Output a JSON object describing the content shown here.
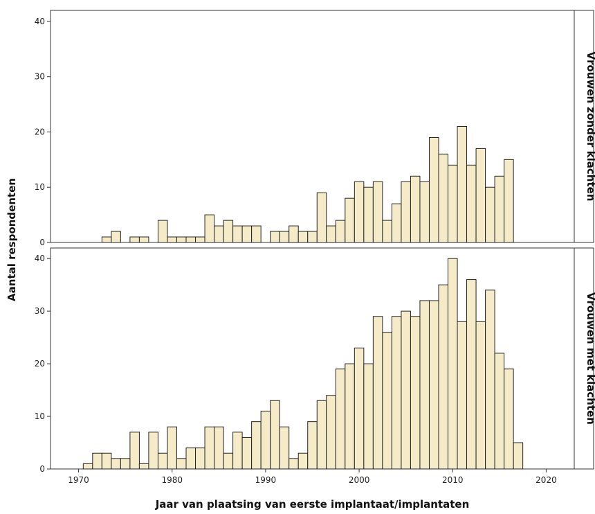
{
  "chart_data": {
    "type": "bar",
    "xlabel": "Jaar van plaatsing van eerste implantaat/implantaten",
    "ylabel": "Aantal respondenten",
    "xlim": [
      1967,
      2023
    ],
    "xticks": [
      1970,
      1980,
      1990,
      2000,
      2010,
      2020
    ],
    "bar_color": "#f5ebc8",
    "bar_edge_color": "#222222",
    "panels": [
      {
        "label": "Vrouwen zonder klachten",
        "ylim": [
          0,
          42
        ],
        "yticks": [
          0,
          10,
          20,
          30,
          40
        ],
        "years": [
          1972,
          1973,
          1974,
          1975,
          1976,
          1977,
          1978,
          1979,
          1980,
          1981,
          1982,
          1983,
          1984,
          1985,
          1986,
          1987,
          1988,
          1989,
          1990,
          1991,
          1992,
          1993,
          1994,
          1995,
          1996,
          1997,
          1998,
          1999,
          2000,
          2001,
          2002,
          2003,
          2004,
          2005,
          2006,
          2007,
          2008,
          2009,
          2010,
          2011,
          2012,
          2013,
          2014,
          2015,
          2016
        ],
        "values": [
          0,
          1,
          2,
          0,
          1,
          1,
          0,
          4,
          1,
          1,
          1,
          1,
          5,
          3,
          4,
          3,
          3,
          3,
          0,
          2,
          2,
          3,
          2,
          2,
          9,
          3,
          4,
          8,
          11,
          10,
          11,
          4,
          7,
          11,
          12,
          11,
          19,
          16,
          14,
          21,
          14,
          17,
          10,
          12,
          15
        ]
      },
      {
        "label": "Vrouwen met klachten",
        "ylim": [
          0,
          42
        ],
        "yticks": [
          0,
          10,
          20,
          30,
          40
        ],
        "years": [
          1970,
          1971,
          1972,
          1973,
          1974,
          1975,
          1976,
          1977,
          1978,
          1979,
          1980,
          1981,
          1982,
          1983,
          1984,
          1985,
          1986,
          1987,
          1988,
          1989,
          1990,
          1991,
          1992,
          1993,
          1994,
          1995,
          1996,
          1997,
          1998,
          1999,
          2000,
          2001,
          2002,
          2003,
          2004,
          2005,
          2006,
          2007,
          2008,
          2009,
          2010,
          2011,
          2012,
          2013,
          2014,
          2015,
          2016,
          2017
        ],
        "values": [
          0,
          1,
          3,
          3,
          2,
          2,
          7,
          1,
          7,
          3,
          8,
          2,
          4,
          4,
          8,
          8,
          3,
          7,
          6,
          9,
          11,
          13,
          8,
          2,
          3,
          9,
          13,
          14,
          19,
          20,
          23,
          20,
          29,
          26,
          29,
          30,
          29,
          32,
          32,
          35,
          40,
          28,
          36,
          28,
          34,
          22,
          19,
          5
        ]
      }
    ]
  }
}
